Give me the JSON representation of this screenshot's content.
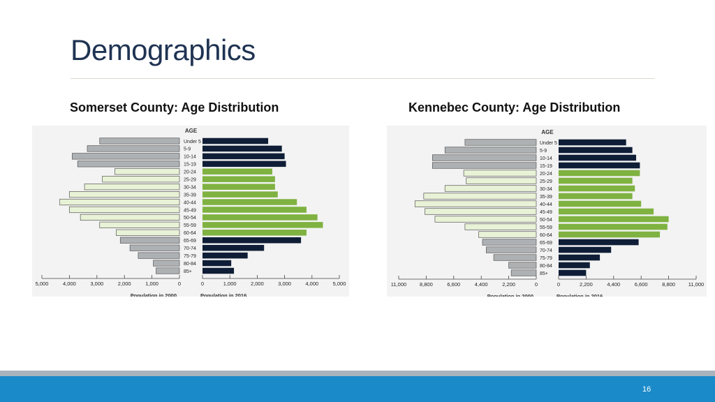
{
  "slide": {
    "title": "Demographics",
    "page_number": "16"
  },
  "colors": {
    "title": "#1f3352",
    "bar_2000": "#c5c7c9",
    "bar_2000_young": "#aeb1b4",
    "bar_2016_dark": "#0f1e36",
    "bar_2016_green": "#7fb241",
    "bar_2000_green_tint": "#e8f2d6",
    "footer": "#1a8ac9"
  },
  "chart_data": [
    {
      "type": "bar",
      "orientation": "population-pyramid",
      "caption": "Somerset County: Age Distribution",
      "age_header": "AGE",
      "categories": [
        "Under 5",
        "5-9",
        "10-14",
        "15-19",
        "20-24",
        "25-29",
        "30-34",
        "35-39",
        "40-44",
        "45-49",
        "50-54",
        "55-59",
        "60-64",
        "65-69",
        "70-74",
        "75-79",
        "80-84",
        "85+"
      ],
      "series": [
        {
          "name": "Population in 2000",
          "side": "left",
          "values": [
            2900,
            3350,
            3900,
            3700,
            2350,
            2800,
            3450,
            4000,
            4350,
            4000,
            3600,
            2900,
            2300,
            2150,
            1800,
            1500,
            950,
            850
          ]
        },
        {
          "name": "Population in 2016",
          "side": "right",
          "values": [
            2400,
            2900,
            3000,
            3050,
            2550,
            2650,
            2650,
            2750,
            3450,
            3800,
            4200,
            4400,
            3800,
            3600,
            2250,
            1650,
            1050,
            1150
          ]
        }
      ],
      "left_ticks": [
        "5,000",
        "4,000",
        "3,000",
        "2,000",
        "1,000",
        "0"
      ],
      "right_ticks": [
        "0",
        "1,000",
        "2,000",
        "3,000",
        "4,000",
        "5,000"
      ],
      "xlim": [
        0,
        5000
      ],
      "xlabel_left": "Population in 2000",
      "xlabel_right": "Population in 2016"
    },
    {
      "type": "bar",
      "orientation": "population-pyramid",
      "caption": "Kennebec County: Age Distribution",
      "age_header": "AGE",
      "categories": [
        "Under 5",
        "5-9",
        "10-14",
        "15-19",
        "20-24",
        "25-29",
        "30-34",
        "35-39",
        "40-44",
        "45-49",
        "50-54",
        "55-59",
        "60-64",
        "65-69",
        "70-74",
        "75-79",
        "80-84",
        "85+"
      ],
      "series": [
        {
          "name": "Population in 2000",
          "side": "left",
          "values": [
            5700,
            7300,
            8300,
            8300,
            5800,
            5600,
            7300,
            9000,
            9700,
            8900,
            8100,
            5700,
            4600,
            4300,
            4000,
            3400,
            2200,
            2000
          ]
        },
        {
          "name": "Population in 2016",
          "side": "right",
          "values": [
            5400,
            5900,
            6200,
            6500,
            6500,
            5900,
            6100,
            5900,
            6600,
            7600,
            8800,
            8700,
            8100,
            6400,
            4200,
            3300,
            2500,
            2200
          ]
        }
      ],
      "left_ticks": [
        "11,000",
        "8,800",
        "6,600",
        "4,400",
        "2,200",
        "0"
      ],
      "right_ticks": [
        "0",
        "2,200",
        "4,400",
        "6,600",
        "8,800",
        "11,000"
      ],
      "xlim": [
        0,
        11000
      ],
      "xlabel_left": "Population in 2000",
      "xlabel_right": "Population in 2016"
    }
  ]
}
